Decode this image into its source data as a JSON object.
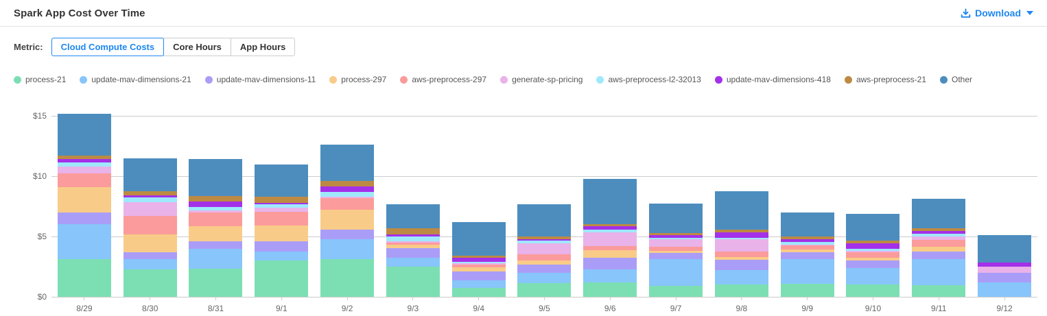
{
  "header": {
    "title": "Spark App Cost Over Time",
    "download_label": "Download"
  },
  "metric": {
    "label": "Metric:",
    "options": [
      {
        "label": "Cloud Compute Costs",
        "selected": true
      },
      {
        "label": "Core Hours",
        "selected": false
      },
      {
        "label": "App Hours",
        "selected": false
      }
    ]
  },
  "colors": {
    "accent_blue": "#1E87F0",
    "axis_text": "#666666",
    "gridline": "#CBCBCB"
  },
  "chart_data": {
    "type": "bar",
    "stacked": true,
    "title": "Spark App Cost Over Time",
    "units": "USD",
    "xlabel": "",
    "ylabel": "",
    "ylim": [
      0,
      15
    ],
    "grid": true,
    "legend_position": "top",
    "yticks": [
      {
        "value": 0,
        "label": "$0"
      },
      {
        "value": 5,
        "label": "$5"
      },
      {
        "value": 10,
        "label": "$10"
      },
      {
        "value": 15,
        "label": "$15"
      }
    ],
    "categories": [
      "8/29",
      "8/30",
      "8/31",
      "9/1",
      "9/2",
      "9/3",
      "9/4",
      "9/5",
      "9/6",
      "9/7",
      "9/8",
      "9/9",
      "9/10",
      "9/11",
      "9/12"
    ],
    "series": [
      {
        "name": "process-21",
        "color": "#7CDFB3",
        "values": [
          3.1,
          2.25,
          2.35,
          3.0,
          3.15,
          2.5,
          0.76,
          1.15,
          1.2,
          0.9,
          1.0,
          1.1,
          1.05,
          0.95,
          0.0
        ]
      },
      {
        "name": "update-mav-dimensions-21",
        "color": "#87C5FA",
        "values": [
          2.95,
          0.85,
          1.6,
          0.75,
          1.6,
          0.75,
          0.6,
          0.85,
          1.05,
          2.2,
          1.2,
          2.0,
          1.35,
          2.15,
          1.2
        ]
      },
      {
        "name": "update-mav-dimensions-11",
        "color": "#AA9DF8",
        "values": [
          0.95,
          0.6,
          0.65,
          0.85,
          0.8,
          0.8,
          0.76,
          0.7,
          1.0,
          0.55,
          0.85,
          0.6,
          0.6,
          0.65,
          0.8
        ]
      },
      {
        "name": "process-297",
        "color": "#F8CC88",
        "values": [
          2.1,
          1.45,
          1.25,
          1.3,
          1.65,
          0.25,
          0.34,
          0.3,
          0.6,
          0.15,
          0.25,
          0.25,
          0.25,
          0.4,
          0.0
        ]
      },
      {
        "name": "aws-preprocess-297",
        "color": "#FB9B9B",
        "values": [
          1.15,
          1.55,
          1.15,
          1.15,
          1.0,
          0.2,
          0.19,
          0.55,
          0.35,
          0.35,
          0.45,
          0.3,
          0.45,
          0.55,
          0.0
        ]
      },
      {
        "name": "generate-sp-pricing",
        "color": "#E9B2E9",
        "values": [
          0.55,
          1.15,
          0.15,
          0.35,
          0.1,
          0.1,
          0.13,
          0.9,
          1.15,
          0.6,
          1.05,
          0.1,
          0.1,
          0.3,
          0.5
        ]
      },
      {
        "name": "aws-preprocess-l2-32013",
        "color": "#9FE8FC",
        "values": [
          0.35,
          0.4,
          0.3,
          0.3,
          0.4,
          0.4,
          0.14,
          0.2,
          0.2,
          0.15,
          0.1,
          0.2,
          0.2,
          0.25,
          0.0
        ]
      },
      {
        "name": "update-mav-dimensions-418",
        "color": "#A430E9",
        "values": [
          0.25,
          0.15,
          0.45,
          0.1,
          0.45,
          0.2,
          0.34,
          0.15,
          0.3,
          0.2,
          0.45,
          0.2,
          0.45,
          0.2,
          0.35
        ]
      },
      {
        "name": "aws-preprocess-21",
        "color": "#BD8A43",
        "values": [
          0.3,
          0.35,
          0.45,
          0.5,
          0.45,
          0.5,
          0.13,
          0.2,
          0.2,
          0.2,
          0.2,
          0.25,
          0.2,
          0.25,
          0.0
        ]
      },
      {
        "name": "Other",
        "color": "#4C8DBE",
        "values": [
          3.45,
          2.75,
          3.05,
          2.65,
          3.0,
          2.0,
          2.79,
          2.7,
          3.75,
          2.45,
          3.2,
          2.0,
          2.25,
          2.45,
          2.25
        ]
      }
    ]
  }
}
